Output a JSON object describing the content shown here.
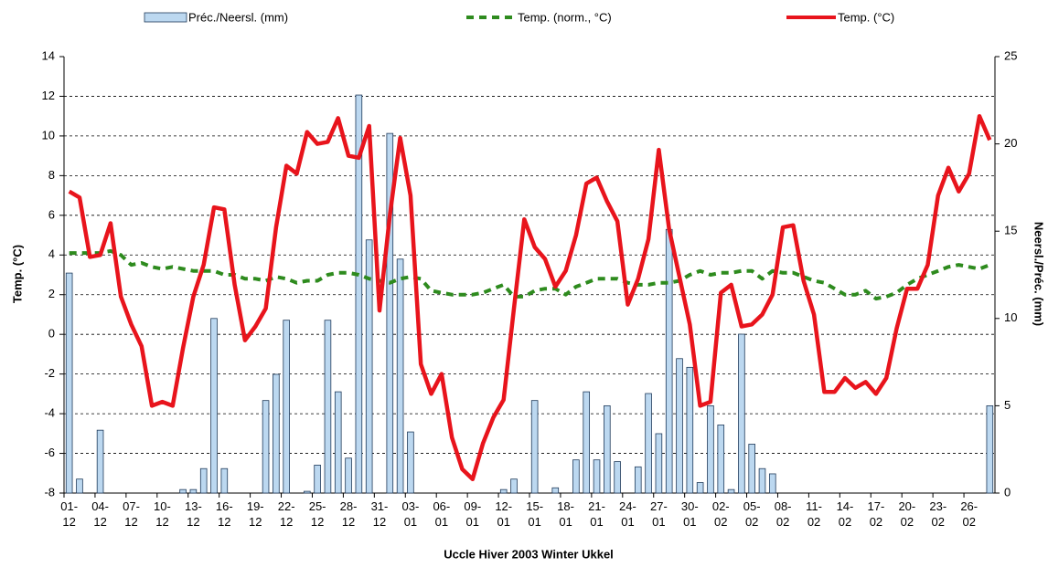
{
  "chart_data": {
    "type": "combo",
    "xlabel": "Uccle Hiver 2003 Winter Ukkel",
    "ylabel": "Temp. (°C)",
    "y2label": "Neersl./Préc. (mm)",
    "categories": [
      "01-12",
      null,
      null,
      "04-12",
      null,
      null,
      "07-12",
      null,
      null,
      "10-12",
      null,
      null,
      "13-12",
      null,
      null,
      "16-12",
      null,
      null,
      "19-12",
      null,
      null,
      "22-12",
      null,
      null,
      "25-12",
      null,
      null,
      "28-12",
      null,
      null,
      "31-12",
      null,
      null,
      "03-01",
      null,
      null,
      "06-01",
      null,
      null,
      "09-01",
      null,
      null,
      "12-01",
      null,
      null,
      "15-01",
      null,
      null,
      "18-01",
      null,
      null,
      "21-01",
      null,
      null,
      "24-01",
      null,
      null,
      "27-01",
      null,
      null,
      "30-01",
      null,
      null,
      "02-02",
      null,
      null,
      "05-02",
      null,
      null,
      "08-02",
      null,
      null,
      "11-02",
      null,
      null,
      "14-02",
      null,
      null,
      "17-02",
      null,
      null,
      "20-02",
      null,
      null,
      "23-02",
      null,
      null,
      "26-02",
      null,
      null
    ],
    "series": [
      {
        "name": "Préc./Neersl. (mm)",
        "type": "bar",
        "axis": "y2",
        "color": "#bcd8f0",
        "values": [
          12.6,
          0.8,
          0,
          3.6,
          0,
          0,
          0,
          0,
          0,
          0,
          0,
          0.2,
          0.2,
          1.4,
          10.0,
          1.4,
          0,
          0,
          0,
          5.3,
          6.8,
          9.9,
          0,
          0.1,
          1.6,
          9.9,
          5.8,
          2.0,
          22.8,
          14.5,
          0,
          20.6,
          13.4,
          3.5,
          0,
          0,
          0,
          0,
          0,
          0,
          0,
          0,
          0.2,
          0.8,
          0,
          5.3,
          0,
          0.3,
          0,
          1.9,
          5.8,
          1.9,
          5.0,
          1.8,
          0,
          1.5,
          5.7,
          3.4,
          15.1,
          7.7,
          7.2,
          0.6,
          5.0,
          3.9,
          0.2,
          9.1,
          2.8,
          1.4,
          1.1,
          0,
          0,
          0,
          0,
          0,
          0,
          0,
          0,
          0,
          0,
          0,
          0,
          0,
          0,
          0,
          0,
          0,
          0,
          0,
          0,
          5.0
        ]
      },
      {
        "name": "Temp. (norm., °C)",
        "type": "line",
        "dashed": true,
        "color": "#2e8b1e",
        "values": [
          4.1,
          4.1,
          4.1,
          4.1,
          4.2,
          4.0,
          3.5,
          3.6,
          3.4,
          3.3,
          3.4,
          3.3,
          3.2,
          3.2,
          3.2,
          3.0,
          3.0,
          2.8,
          2.8,
          2.7,
          2.9,
          2.8,
          2.6,
          2.7,
          2.7,
          3.0,
          3.1,
          3.1,
          3.0,
          2.8,
          2.7,
          2.6,
          2.8,
          2.9,
          2.8,
          2.2,
          2.1,
          2.0,
          2.0,
          2.0,
          2.1,
          2.3,
          2.5,
          1.9,
          1.9,
          2.2,
          2.3,
          2.3,
          2.0,
          2.4,
          2.6,
          2.8,
          2.8,
          2.8,
          2.6,
          2.5,
          2.5,
          2.6,
          2.6,
          2.7,
          3.0,
          3.2,
          3.0,
          3.1,
          3.1,
          3.2,
          3.2,
          2.8,
          3.2,
          3.1,
          3.1,
          2.9,
          2.7,
          2.6,
          2.3,
          2.0,
          2.0,
          2.2,
          1.8,
          1.9,
          2.1,
          2.5,
          2.8,
          3.0,
          3.2,
          3.4,
          3.5,
          3.4,
          3.3,
          3.5
        ]
      },
      {
        "name": "Temp. (°C)",
        "type": "line",
        "dashed": false,
        "color": "#e8141c",
        "values": [
          7.2,
          6.9,
          3.9,
          4.0,
          5.6,
          1.9,
          0.5,
          -0.6,
          -3.6,
          -3.4,
          -3.6,
          -0.7,
          1.9,
          3.5,
          6.4,
          6.3,
          2.5,
          -0.3,
          0.4,
          1.3,
          5.4,
          8.5,
          8.1,
          10.2,
          9.6,
          9.7,
          10.9,
          9.0,
          8.9,
          10.5,
          1.2,
          6.0,
          9.9,
          7.0,
          -1.5,
          -3.0,
          -2.0,
          -5.2,
          -6.8,
          -7.3,
          -5.5,
          -4.2,
          -3.3,
          1.3,
          5.8,
          4.4,
          3.8,
          2.4,
          3.2,
          5.0,
          7.6,
          7.9,
          6.7,
          5.7,
          1.5,
          2.8,
          4.8,
          9.3,
          5.3,
          2.9,
          0.5,
          -3.6,
          -3.4,
          2.1,
          2.5,
          0.4,
          0.5,
          1.0,
          2.0,
          5.4,
          5.5,
          2.7,
          1.0,
          -2.9,
          -2.9,
          -2.2,
          -2.7,
          -2.4,
          -3.0,
          -2.2,
          0.3,
          2.3,
          2.3,
          3.5,
          7.0,
          8.4,
          7.2,
          8.1,
          11.0,
          9.8
        ]
      }
    ],
    "ylim": [
      -8,
      14
    ],
    "yticks": [
      -8,
      -6,
      -4,
      -2,
      0,
      2,
      4,
      6,
      8,
      10,
      12,
      14
    ],
    "y2lim": [
      0,
      25
    ],
    "y2ticks": [
      0,
      5,
      10,
      15,
      20,
      25
    ],
    "grid": true,
    "legend": "top"
  }
}
